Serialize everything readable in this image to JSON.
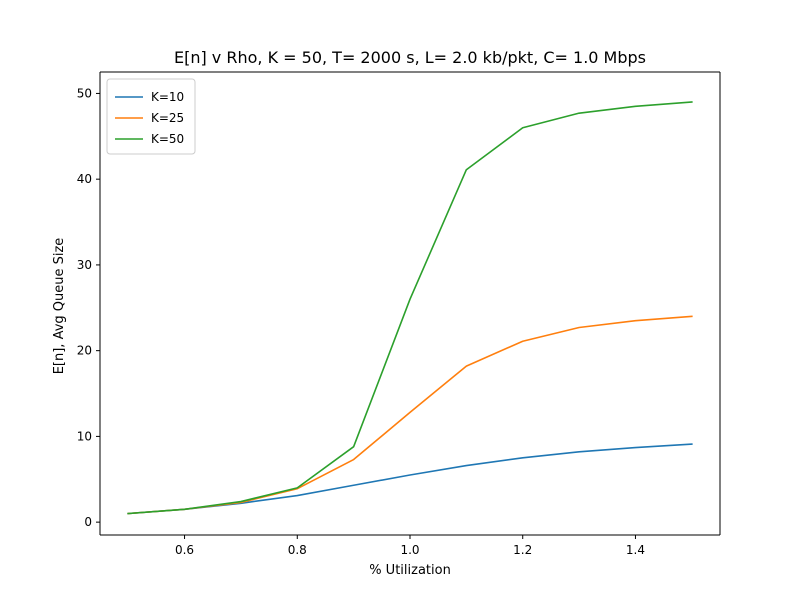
{
  "chart_data": {
    "type": "line",
    "title": "E[n] v Rho, K = 50, T= 2000 s, L= 2.0 kb/pkt, C= 1.0 Mbps",
    "xlabel": "% Utilization",
    "ylabel": "E[n], Avg Queue Size",
    "xlim": [
      0.45,
      1.55
    ],
    "ylim": [
      -1.5,
      52.5
    ],
    "xticks": [
      0.6,
      0.8,
      1.0,
      1.2,
      1.4
    ],
    "xtick_labels": [
      "0.6",
      "0.8",
      "1.0",
      "1.2",
      "1.4"
    ],
    "yticks": [
      0,
      10,
      20,
      30,
      40,
      50
    ],
    "ytick_labels": [
      "0",
      "10",
      "20",
      "30",
      "40",
      "50"
    ],
    "grid": false,
    "legend_position": "top-left",
    "x": [
      0.5,
      0.6,
      0.7,
      0.8,
      0.9,
      1.0,
      1.1,
      1.2,
      1.3,
      1.4,
      1.5
    ],
    "series": [
      {
        "name": "K=10",
        "color": "#1f77b4",
        "values": [
          1.0,
          1.5,
          2.2,
          3.1,
          4.3,
          5.5,
          6.6,
          7.5,
          8.2,
          8.7,
          9.1
        ]
      },
      {
        "name": "K=25",
        "color": "#ff7f0e",
        "values": [
          1.0,
          1.5,
          2.3,
          3.9,
          7.3,
          12.8,
          18.2,
          21.1,
          22.7,
          23.5,
          24.0
        ]
      },
      {
        "name": "K=50",
        "color": "#2ca02c",
        "values": [
          1.0,
          1.5,
          2.4,
          4.0,
          8.8,
          26.0,
          41.1,
          46.0,
          47.7,
          48.5,
          49.0
        ]
      }
    ]
  }
}
